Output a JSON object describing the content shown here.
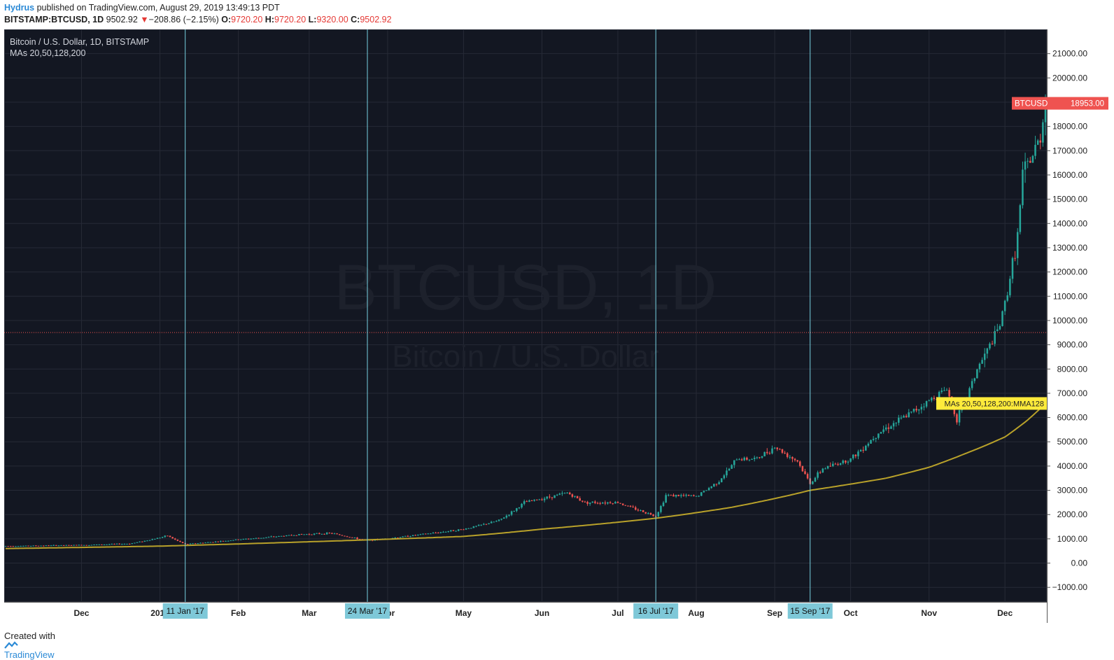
{
  "header": {
    "author": "Hydrus",
    "published_text": "published on TradingView.com, August 29, 2019 13:49:13 PDT",
    "symbol": "BITSTAMP:BTCUSD, 1D",
    "last": "9502.92",
    "change_arrow": "▼",
    "change": "−208.86 (−2.15%)",
    "o_label": "O:",
    "o_value": "9720.20",
    "h_label": "H:",
    "h_value": "9720.20",
    "l_label": "L:",
    "l_value": "9320.00",
    "c_label": "C:",
    "c_value": "9502.92"
  },
  "footer": {
    "created_with": "Created with",
    "brand": "TradingView"
  },
  "chart_data": {
    "type": "candlestick",
    "title": "Bitcoin / U.S. Dollar, 1D, BITSTAMP",
    "indicator_label": "MAs 20,50,128,200",
    "watermark_main": "BTCUSD, 1D",
    "watermark_sub": "Bitcoin / U.S. Dollar",
    "ylim": [
      -1600,
      22000
    ],
    "y_ticks": [
      -1000,
      0,
      1000,
      2000,
      3000,
      4000,
      5000,
      6000,
      7000,
      8000,
      9000,
      10000,
      11000,
      12000,
      13000,
      14000,
      15000,
      16000,
      17000,
      18000,
      19000,
      20000,
      21000
    ],
    "x_range": [
      "2016-11-01",
      "2017-12-17"
    ],
    "x_ticks": [
      {
        "date": "2016-12-01",
        "label": "Dec"
      },
      {
        "date": "2017-01-01",
        "label": "2017"
      },
      {
        "date": "2017-02-01",
        "label": "Feb"
      },
      {
        "date": "2017-03-01",
        "label": "Mar"
      },
      {
        "date": "2017-04-01",
        "label": "Apr"
      },
      {
        "date": "2017-05-01",
        "label": "May"
      },
      {
        "date": "2017-06-01",
        "label": "Jun"
      },
      {
        "date": "2017-07-01",
        "label": "Jul"
      },
      {
        "date": "2017-08-01",
        "label": "Aug"
      },
      {
        "date": "2017-09-01",
        "label": "Sep"
      },
      {
        "date": "2017-10-01",
        "label": "Oct"
      },
      {
        "date": "2017-11-01",
        "label": "Nov"
      },
      {
        "date": "2017-12-01",
        "label": "Dec"
      }
    ],
    "vertical_markers": [
      {
        "date": "2017-01-11",
        "label": "11 Jan '17"
      },
      {
        "date": "2017-03-24",
        "label": "24 Mar '17"
      },
      {
        "date": "2017-07-16",
        "label": "16 Jul '17"
      },
      {
        "date": "2017-09-15",
        "label": "15 Sep '17"
      }
    ],
    "horizontal_line": 9502.92,
    "price_label": {
      "symbol": "BTCUSD",
      "value": "18953.00",
      "price": 18953
    },
    "ma_label": {
      "text": "MAs 20,50,128,200:MMA128",
      "value": 6580
    },
    "price_anchors": [
      {
        "date": "2016-11-01",
        "price": 700
      },
      {
        "date": "2016-11-30",
        "price": 740
      },
      {
        "date": "2016-12-20",
        "price": 800
      },
      {
        "date": "2017-01-04",
        "price": 1130
      },
      {
        "date": "2017-01-11",
        "price": 780
      },
      {
        "date": "2017-02-01",
        "price": 970
      },
      {
        "date": "2017-02-25",
        "price": 1180
      },
      {
        "date": "2017-03-10",
        "price": 1230
      },
      {
        "date": "2017-03-24",
        "price": 930
      },
      {
        "date": "2017-04-15",
        "price": 1190
      },
      {
        "date": "2017-05-01",
        "price": 1400
      },
      {
        "date": "2017-05-15",
        "price": 1760
      },
      {
        "date": "2017-05-25",
        "price": 2500
      },
      {
        "date": "2017-06-11",
        "price": 2900
      },
      {
        "date": "2017-06-18",
        "price": 2500
      },
      {
        "date": "2017-07-01",
        "price": 2500
      },
      {
        "date": "2017-07-16",
        "price": 1950
      },
      {
        "date": "2017-07-20",
        "price": 2800
      },
      {
        "date": "2017-08-01",
        "price": 2750
      },
      {
        "date": "2017-08-10",
        "price": 3400
      },
      {
        "date": "2017-08-17",
        "price": 4300
      },
      {
        "date": "2017-08-25",
        "price": 4300
      },
      {
        "date": "2017-09-01",
        "price": 4800
      },
      {
        "date": "2017-09-10",
        "price": 4200
      },
      {
        "date": "2017-09-15",
        "price": 3300
      },
      {
        "date": "2017-09-20",
        "price": 3900
      },
      {
        "date": "2017-10-01",
        "price": 4300
      },
      {
        "date": "2017-10-12",
        "price": 5400
      },
      {
        "date": "2017-10-22",
        "price": 6000
      },
      {
        "date": "2017-11-01",
        "price": 6700
      },
      {
        "date": "2017-11-08",
        "price": 7200
      },
      {
        "date": "2017-11-12",
        "price": 5950
      },
      {
        "date": "2017-11-20",
        "price": 8000
      },
      {
        "date": "2017-11-29",
        "price": 9800
      },
      {
        "date": "2017-12-06",
        "price": 13500
      },
      {
        "date": "2017-12-08",
        "price": 16000
      },
      {
        "date": "2017-12-12",
        "price": 16800
      },
      {
        "date": "2017-12-15",
        "price": 17600
      },
      {
        "date": "2017-12-17",
        "price": 18953
      }
    ],
    "ma128_anchors": [
      {
        "date": "2016-11-01",
        "price": 600
      },
      {
        "date": "2017-01-01",
        "price": 700
      },
      {
        "date": "2017-03-01",
        "price": 880
      },
      {
        "date": "2017-05-01",
        "price": 1100
      },
      {
        "date": "2017-06-01",
        "price": 1400
      },
      {
        "date": "2017-07-16",
        "price": 1850
      },
      {
        "date": "2017-08-15",
        "price": 2300
      },
      {
        "date": "2017-09-15",
        "price": 3000
      },
      {
        "date": "2017-10-15",
        "price": 3500
      },
      {
        "date": "2017-11-01",
        "price": 3950
      },
      {
        "date": "2017-11-15",
        "price": 4500
      },
      {
        "date": "2017-12-01",
        "price": 5200
      },
      {
        "date": "2017-12-10",
        "price": 5900
      },
      {
        "date": "2017-12-17",
        "price": 6580
      }
    ],
    "colors": {
      "background": "#131722",
      "grid": "#262a36",
      "up": "#26a69a",
      "down": "#ef5350",
      "ma128": "#b8a12a",
      "marker_line": "#76d0e0",
      "marker_label_bg": "#7ec8d8",
      "axis_text": "#d1d4dc",
      "price_label_bg": "#ef5350",
      "ma_label_bg": "#ffeb3b",
      "hline": "#ef5350",
      "watermark": "#1d212c"
    }
  }
}
